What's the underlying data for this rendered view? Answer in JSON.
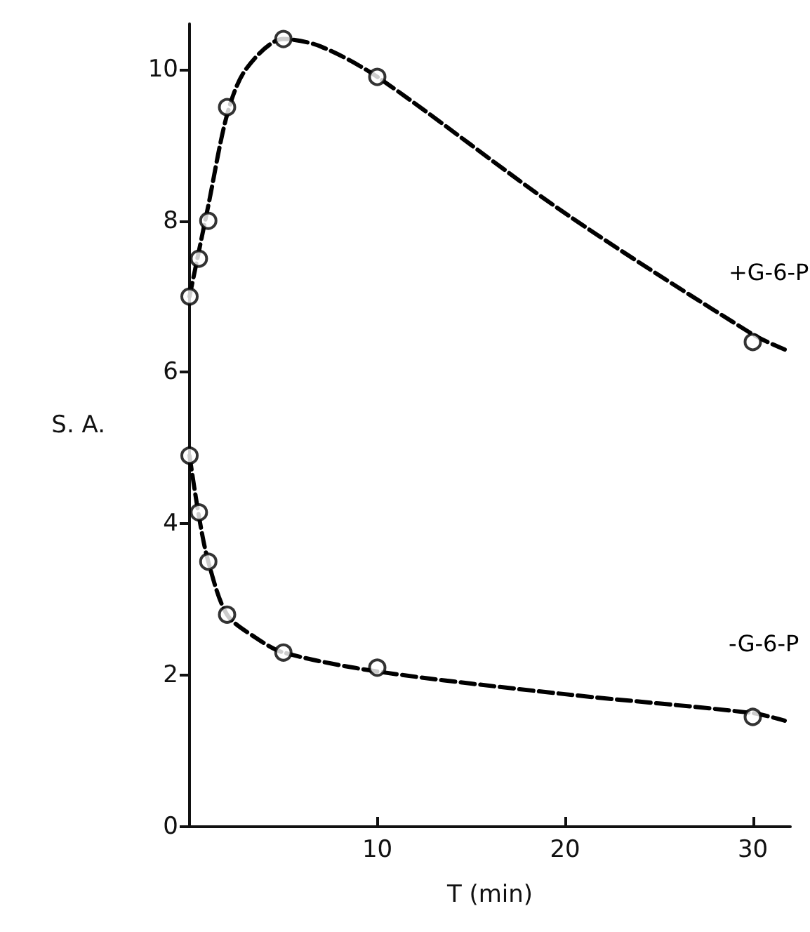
{
  "chart_data": {
    "type": "line",
    "xlabel": "T (min)",
    "ylabel": "S. A.",
    "xlim": [
      0,
      32
    ],
    "xticks": [
      10,
      20,
      30
    ],
    "ylim": [
      0,
      10.6
    ],
    "yticks": [
      0,
      2,
      4,
      6,
      8,
      10
    ],
    "grid": false,
    "legend": false,
    "series": [
      {
        "name": "+G-6-P",
        "color": "#000000",
        "marker": "none",
        "line_style": "dashed",
        "x": [
          0,
          0.5,
          1,
          2,
          3,
          5,
          7,
          10,
          20,
          30,
          31.7
        ],
        "values": [
          7.0,
          7.6,
          8.2,
          9.4,
          10.0,
          10.4,
          10.3,
          9.9,
          8.1,
          6.5,
          6.3
        ]
      },
      {
        "type": "scatter",
        "color": "#000000",
        "marker": "circle",
        "x": [
          0,
          0.5,
          1,
          2,
          5,
          10,
          30
        ],
        "values": [
          7.0,
          7.5,
          8.0,
          9.5,
          10.4,
          9.9,
          6.4
        ]
      },
      {
        "name": "-G-6-P",
        "color": "#000000",
        "marker": "none",
        "line_style": "dashed",
        "x": [
          0,
          0.5,
          1,
          2,
          3.5,
          5,
          10,
          20,
          30,
          31.7
        ],
        "values": [
          4.9,
          4.1,
          3.5,
          2.8,
          2.5,
          2.3,
          2.05,
          1.75,
          1.5,
          1.4
        ]
      },
      {
        "type": "scatter",
        "color": "#000000",
        "marker": "circle",
        "x": [
          0,
          0.5,
          1,
          2,
          5,
          10,
          30
        ],
        "values": [
          4.9,
          4.15,
          3.5,
          2.8,
          2.3,
          2.1,
          1.45
        ]
      }
    ]
  }
}
